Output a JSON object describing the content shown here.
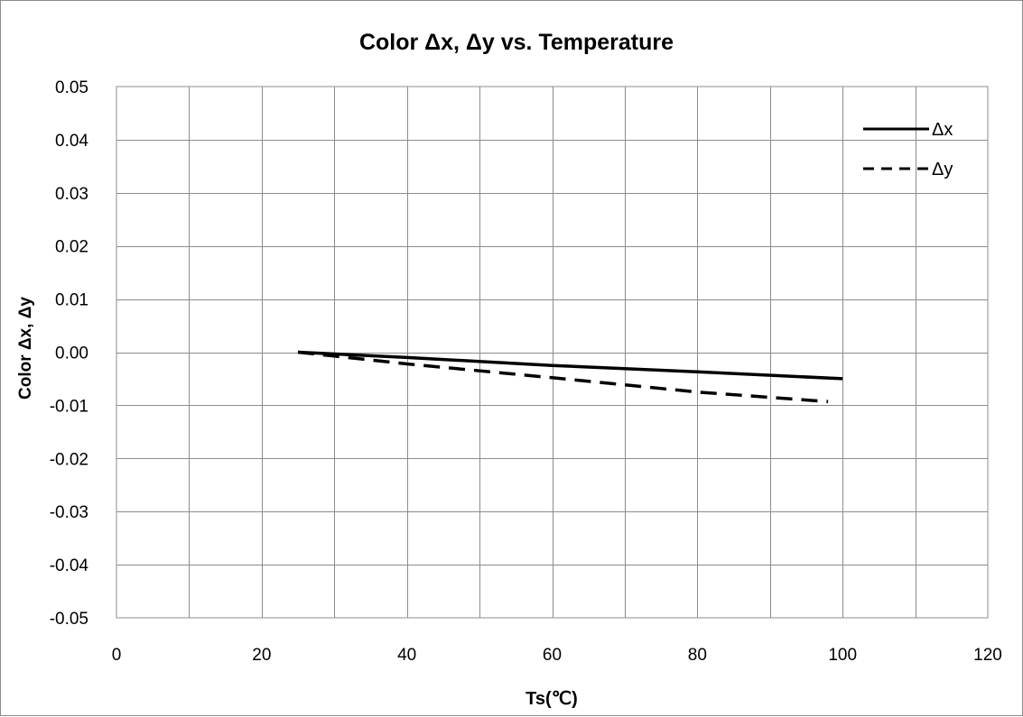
{
  "chart_data": {
    "type": "line",
    "title": "Color Δx, Δy vs. Temperature",
    "xlabel": "Ts(℃)",
    "ylabel": "Color Δx, Δy",
    "xlim": [
      0,
      120
    ],
    "ylim": [
      -0.05,
      0.05
    ],
    "x_ticks": [
      "0",
      "20",
      "40",
      "60",
      "80",
      "100",
      "120"
    ],
    "y_ticks": [
      "0.05",
      "0.04",
      "0.03",
      "0.02",
      "0.01",
      "0.00",
      "-0.01",
      "-0.02",
      "-0.03",
      "-0.04",
      "-0.05"
    ],
    "x_grid_step": 10,
    "y_grid_step": 0.01,
    "grid": true,
    "legend_position": "top-right",
    "series": [
      {
        "name": "Δx",
        "style": "solid",
        "color": "#000000",
        "x": [
          25,
          40,
          60,
          80,
          100
        ],
        "y": [
          0.0,
          -0.001,
          -0.0025,
          -0.0037,
          -0.005
        ]
      },
      {
        "name": "Δy",
        "style": "dashed",
        "color": "#000000",
        "x": [
          25,
          40,
          60,
          80,
          98
        ],
        "y": [
          0.0,
          -0.0022,
          -0.0048,
          -0.0075,
          -0.0093
        ]
      }
    ]
  }
}
